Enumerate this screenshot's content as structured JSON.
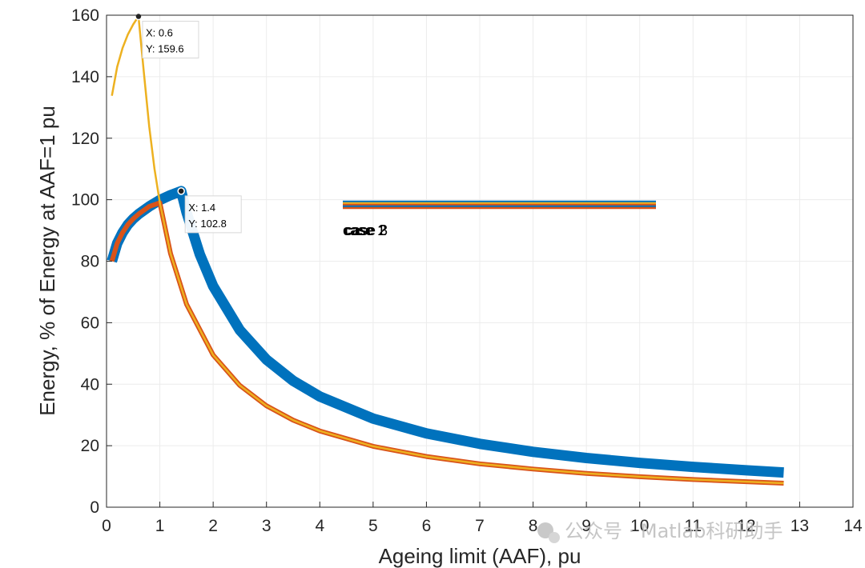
{
  "chart_data": {
    "type": "line",
    "xlabel": "Ageing limit (AAF), pu",
    "ylabel": "Energy, % of Energy at AAF=1 pu",
    "xlim": [
      0,
      14
    ],
    "ylim": [
      0,
      160
    ],
    "xticks": [
      "0",
      "1",
      "2",
      "3",
      "4",
      "5",
      "6",
      "7",
      "8",
      "9",
      "10",
      "11",
      "12",
      "13",
      "14"
    ],
    "yticks": [
      "0",
      "20",
      "40",
      "60",
      "80",
      "100",
      "120",
      "140",
      "160"
    ],
    "grid": true,
    "series": [
      {
        "name": "case 1",
        "color": "#0072BD",
        "x": [
          0.1,
          0.2,
          0.3,
          0.4,
          0.5,
          0.6,
          0.8,
          1.0,
          1.2,
          1.4,
          1.5,
          1.75,
          2.0,
          2.5,
          3.0,
          3.5,
          4.0,
          5.0,
          6.0,
          7.0,
          8.0,
          9.0,
          10.0,
          11.0,
          12.0,
          12.7
        ],
        "y": [
          80,
          85.8,
          89.3,
          91.9,
          93.8,
          95.3,
          97.8,
          99.9,
          101.5,
          102.8,
          95.9,
          82.2,
          71.9,
          57.6,
          48.0,
          41.1,
          36.0,
          28.8,
          24.0,
          20.6,
          18.0,
          16.0,
          14.4,
          13.1,
          12.0,
          11.3
        ]
      },
      {
        "name": "case 2",
        "color": "#D95319",
        "x": [
          0.1,
          0.2,
          0.3,
          0.4,
          0.5,
          0.6,
          0.8,
          1.0,
          1.2,
          1.5,
          2.0,
          2.5,
          3.0,
          3.5,
          4.0,
          5.0,
          6.0,
          7.0,
          8.0,
          9.0,
          10.0,
          11.0,
          12.0,
          12.7
        ],
        "y": [
          80,
          85.8,
          89.3,
          91.9,
          93.8,
          95.3,
          97.8,
          99.0,
          82.5,
          66.0,
          49.5,
          39.6,
          33.0,
          28.3,
          24.8,
          19.8,
          16.5,
          14.1,
          12.4,
          11.0,
          9.9,
          9.0,
          8.3,
          7.8
        ]
      },
      {
        "name": "case 3",
        "color": "#EDB120",
        "x": [
          0.1,
          0.2,
          0.3,
          0.4,
          0.5,
          0.6,
          0.7,
          0.8,
          0.9,
          1.0,
          1.2,
          1.5,
          2.0,
          2.5,
          3.0,
          3.5,
          4.0,
          5.0,
          6.0,
          7.0,
          8.0,
          9.0,
          10.0,
          11.0,
          12.0,
          12.7
        ],
        "y": [
          133.8,
          143.2,
          149.3,
          153.7,
          157.0,
          159.6,
          141.4,
          123.8,
          110.0,
          99.0,
          82.5,
          66.0,
          49.5,
          39.6,
          33.0,
          28.3,
          24.8,
          19.8,
          16.5,
          14.1,
          12.4,
          11.0,
          9.9,
          9.0,
          8.3,
          7.8
        ]
      }
    ],
    "datatips": [
      {
        "x": 0.6,
        "y": 159.6,
        "label_x": "X: 0.6",
        "label_y": "Y: 159.6"
      },
      {
        "x": 1.4,
        "y": 102.8,
        "label_x": "X: 1.4",
        "label_y": "Y: 102.8"
      }
    ],
    "legend_labels": [
      "case 1",
      "case 2",
      "case 3"
    ],
    "watermark": "公众号 · Matlab科研助手"
  }
}
